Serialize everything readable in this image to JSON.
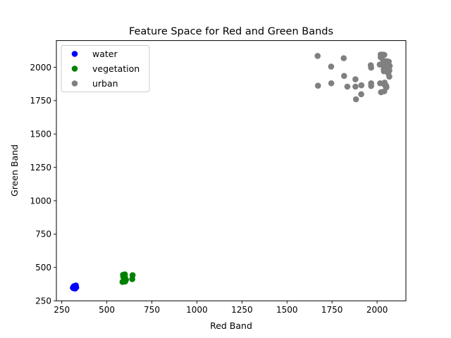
{
  "chart_data": {
    "type": "scatter",
    "title": "Feature Space for Red and Green Bands",
    "xlabel": "Red Band",
    "ylabel": "Green Band",
    "xlim": [
      220,
      2160
    ],
    "ylim": [
      250,
      2200
    ],
    "xticks": [
      250,
      500,
      750,
      1000,
      1250,
      1500,
      1750,
      2000
    ],
    "yticks": [
      250,
      500,
      750,
      1000,
      1250,
      1500,
      1750,
      2000
    ],
    "grid": false,
    "legend_position": "top-left",
    "series": [
      {
        "name": "water",
        "color": "#0000ff",
        "points": [
          [
            312,
            348
          ],
          [
            318,
            355
          ],
          [
            322,
            352
          ],
          [
            326,
            350
          ],
          [
            320,
            360
          ],
          [
            328,
            365
          ],
          [
            315,
            345
          ],
          [
            330,
            350
          ],
          [
            324,
            342
          ],
          [
            316,
            358
          ],
          [
            325,
            356
          ],
          [
            319,
            349
          ]
        ]
      },
      {
        "name": "vegetation",
        "color": "#008000",
        "points": [
          [
            590,
            445
          ],
          [
            592,
            428
          ],
          [
            598,
            412
          ],
          [
            600,
            430
          ],
          [
            587,
            392
          ],
          [
            596,
            400
          ],
          [
            602,
            395
          ],
          [
            606,
            408
          ],
          [
            641,
            413
          ],
          [
            643,
            442
          ],
          [
            600,
            448
          ]
        ]
      },
      {
        "name": "urban",
        "color": "#808080",
        "points": [
          [
            1670,
            2085
          ],
          [
            1672,
            1862
          ],
          [
            1745,
            2005
          ],
          [
            1746,
            1880
          ],
          [
            1815,
            2068
          ],
          [
            1817,
            1935
          ],
          [
            1835,
            1855
          ],
          [
            1880,
            1910
          ],
          [
            1880,
            1855
          ],
          [
            1883,
            1760
          ],
          [
            1912,
            1798
          ],
          [
            1913,
            1865
          ],
          [
            1965,
            2015
          ],
          [
            1967,
            1997
          ],
          [
            1967,
            1880
          ],
          [
            1967,
            1860
          ],
          [
            2015,
            2020
          ],
          [
            2017,
            1880
          ],
          [
            2020,
            2095
          ],
          [
            2020,
            2075
          ],
          [
            2022,
            1813
          ],
          [
            2030,
            2095
          ],
          [
            2035,
            2050
          ],
          [
            2035,
            2018
          ],
          [
            2037,
            1985
          ],
          [
            2038,
            1970
          ],
          [
            2040,
            2093
          ],
          [
            2040,
            1820
          ],
          [
            2042,
            1885
          ],
          [
            2043,
            1866
          ],
          [
            2045,
            2030
          ],
          [
            2047,
            2003
          ],
          [
            2048,
            1995
          ],
          [
            2050,
            1975
          ],
          [
            2050,
            1862
          ],
          [
            2052,
            1850
          ],
          [
            2055,
            2045
          ],
          [
            2058,
            2015
          ],
          [
            2060,
            1980
          ],
          [
            2062,
            1955
          ],
          [
            2065,
            2042
          ],
          [
            2066,
            1999
          ],
          [
            2068,
            1975
          ],
          [
            2068,
            1930
          ],
          [
            2070,
            2010
          ]
        ]
      }
    ]
  }
}
